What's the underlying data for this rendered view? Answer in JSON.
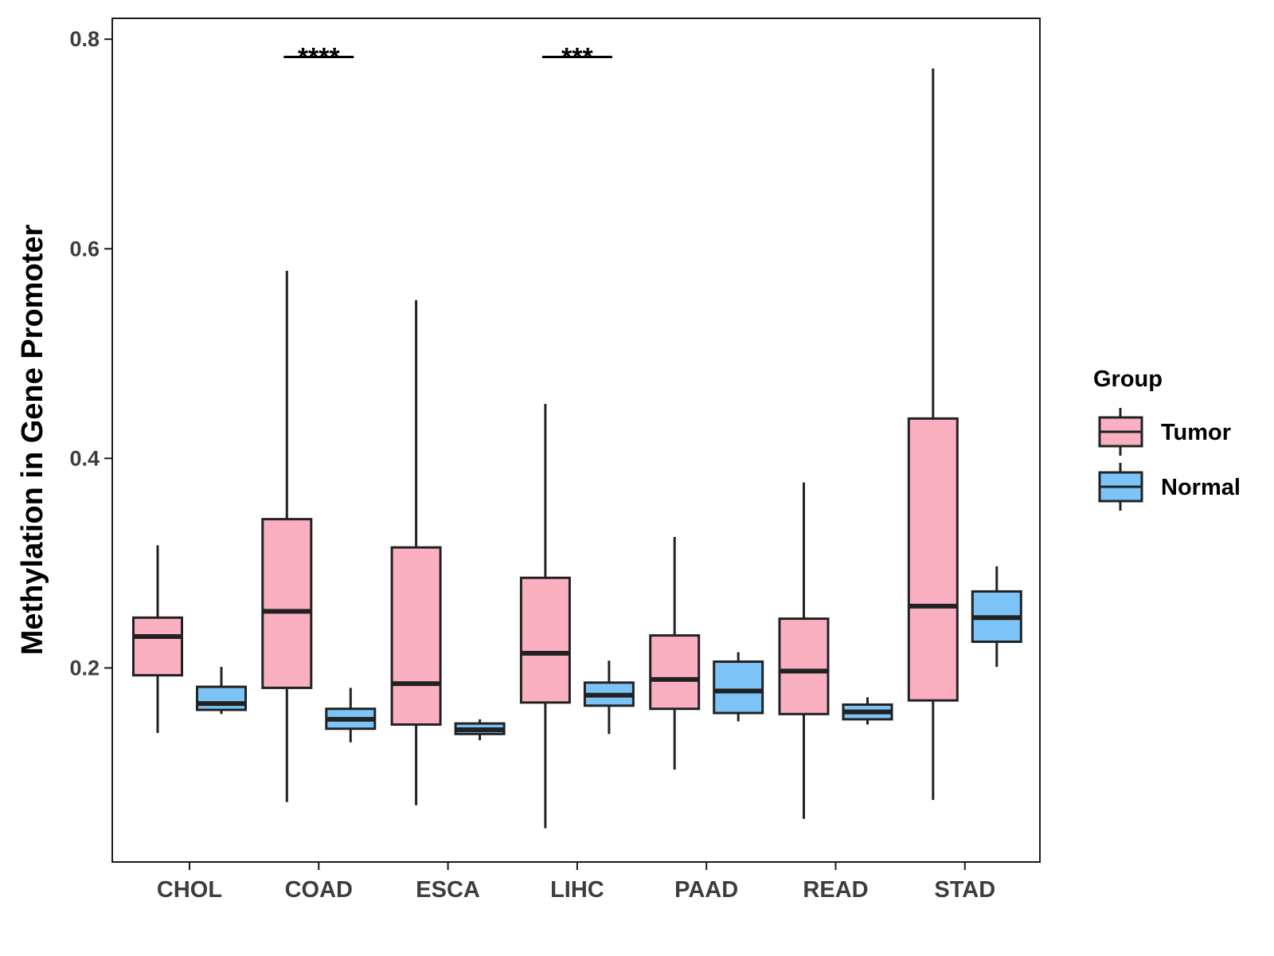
{
  "chart_data": {
    "type": "boxplot",
    "title": "",
    "xlabel": "",
    "ylabel": "Methylation in Gene Promoter",
    "ylim": [
      0.0,
      0.82
    ],
    "yticks": [
      0.2,
      0.4,
      0.6,
      0.8
    ],
    "ytick_labels": [
      "0.2",
      "0.4",
      "0.6",
      "0.8"
    ],
    "grid": false,
    "categories": [
      "CHOL",
      "COAD",
      "ESCA",
      "LIHC",
      "PAAD",
      "READ",
      "STAD"
    ],
    "legend": {
      "title": "Group",
      "placement": "right",
      "entries": [
        {
          "name": "Tumor",
          "color": "#fbb0c2"
        },
        {
          "name": "Normal",
          "color": "#7cc4f8"
        }
      ]
    },
    "series": [
      {
        "name": "Tumor",
        "color": "#fbb0c2",
        "boxes": [
          {
            "min": 0.138,
            "q1": 0.193,
            "median": 0.23,
            "q3": 0.248,
            "max": 0.317
          },
          {
            "min": 0.072,
            "q1": 0.181,
            "median": 0.254,
            "q3": 0.342,
            "max": 0.579
          },
          {
            "min": 0.069,
            "q1": 0.146,
            "median": 0.185,
            "q3": 0.315,
            "max": 0.551
          },
          {
            "min": 0.047,
            "q1": 0.167,
            "median": 0.214,
            "q3": 0.286,
            "max": 0.452
          },
          {
            "min": 0.103,
            "q1": 0.161,
            "median": 0.189,
            "q3": 0.231,
            "max": 0.325
          },
          {
            "min": 0.056,
            "q1": 0.156,
            "median": 0.197,
            "q3": 0.247,
            "max": 0.377
          },
          {
            "min": 0.074,
            "q1": 0.169,
            "median": 0.259,
            "q3": 0.438,
            "max": 0.772
          }
        ]
      },
      {
        "name": "Normal",
        "color": "#7cc4f8",
        "boxes": [
          {
            "min": 0.156,
            "q1": 0.16,
            "median": 0.166,
            "q3": 0.182,
            "max": 0.201
          },
          {
            "min": 0.129,
            "q1": 0.142,
            "median": 0.151,
            "q3": 0.161,
            "max": 0.181
          },
          {
            "min": 0.131,
            "q1": 0.137,
            "median": 0.141,
            "q3": 0.147,
            "max": 0.151
          },
          {
            "min": 0.137,
            "q1": 0.164,
            "median": 0.174,
            "q3": 0.186,
            "max": 0.207
          },
          {
            "min": 0.149,
            "q1": 0.157,
            "median": 0.178,
            "q3": 0.206,
            "max": 0.215
          },
          {
            "min": 0.146,
            "q1": 0.151,
            "median": 0.158,
            "q3": 0.165,
            "max": 0.172
          },
          {
            "min": 0.201,
            "q1": 0.225,
            "median": 0.248,
            "q3": 0.273,
            "max": 0.297
          }
        ]
      }
    ],
    "annotations": [
      {
        "category": "COAD",
        "text": "****",
        "y": 0.78
      },
      {
        "category": "LIHC",
        "text": "***",
        "y": 0.78
      }
    ]
  }
}
